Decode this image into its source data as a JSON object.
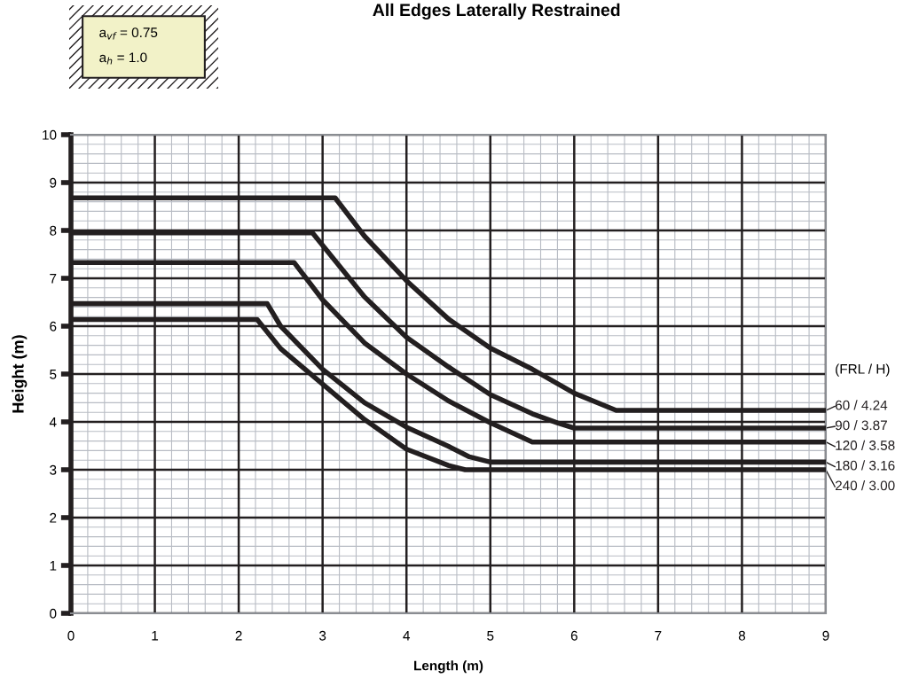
{
  "chart_data": {
    "type": "line",
    "title": "All Edges Laterally Restrained",
    "xlabel": "Length (m)",
    "ylabel": "Height (m)",
    "legend_title": "(FRL / H)",
    "annotations": [
      "a$_{vf}$ = 0.75",
      "a$_{h}$ = 1.0"
    ],
    "xlim": [
      0,
      9
    ],
    "ylim": [
      0,
      10
    ],
    "xticks": [
      0,
      1,
      2,
      3,
      4,
      5,
      6,
      7,
      8,
      9
    ],
    "yticks": [
      0,
      1,
      2,
      3,
      4,
      5,
      6,
      7,
      8,
      9,
      10
    ],
    "grid": true,
    "marker": "none",
    "line_style": "solid",
    "legend": "right",
    "series": [
      {
        "name": "60 / 4.24",
        "color": "#231f20",
        "x": [
          0,
          3.15,
          3.5,
          4,
          4.5,
          5,
          5.5,
          6,
          6.5,
          9
        ],
        "values": [
          8.68,
          8.68,
          7.88,
          6.95,
          6.15,
          5.54,
          5.1,
          4.6,
          4.24,
          4.24
        ]
      },
      {
        "name": "90 / 3.87",
        "color": "#231f20",
        "x": [
          0,
          2.88,
          3,
          3.5,
          4,
          4.5,
          5,
          5.5,
          5.8,
          6,
          9
        ],
        "values": [
          7.95,
          7.95,
          7.69,
          6.61,
          5.77,
          5.15,
          4.57,
          4.17,
          3.98,
          3.87,
          3.87
        ]
      },
      {
        "name": "120 / 3.58",
        "color": "#231f20",
        "x": [
          0,
          2.66,
          3,
          3.5,
          4,
          4.5,
          5,
          5.5,
          9
        ],
        "values": [
          7.33,
          7.33,
          6.55,
          5.65,
          5.0,
          4.44,
          3.98,
          3.58,
          3.58
        ]
      },
      {
        "name": "180 / 3.16",
        "color": "#231f20",
        "x": [
          0,
          2.34,
          2.5,
          3,
          3.5,
          4,
          4.5,
          4.75,
          5,
          9
        ],
        "values": [
          6.47,
          6.47,
          6.0,
          5.1,
          4.4,
          3.89,
          3.49,
          3.27,
          3.16,
          3.16
        ]
      },
      {
        "name": "240 / 3.00",
        "color": "#231f20",
        "x": [
          0,
          2.22,
          2.5,
          3,
          3.5,
          4,
          4.5,
          4.7,
          9
        ],
        "values": [
          6.14,
          6.14,
          5.53,
          4.79,
          4.05,
          3.43,
          3.09,
          3.0,
          3.0
        ]
      }
    ]
  }
}
